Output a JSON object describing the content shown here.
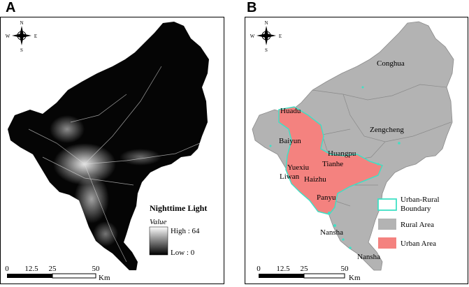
{
  "panels": {
    "a": {
      "letter": "A",
      "compass": {
        "n": "N",
        "s": "S",
        "e": "E",
        "w": "W"
      },
      "legend": {
        "title": "Nighttime Light",
        "value_label": "Value",
        "high_label": "High : 64",
        "low_label": "Low : 0"
      },
      "scale": {
        "ticks": [
          "0",
          "12.5",
          "25",
          "50"
        ],
        "unit": "Km"
      }
    },
    "b": {
      "letter": "B",
      "compass": {
        "n": "N",
        "s": "S",
        "e": "E",
        "w": "W"
      },
      "districts": [
        "Conghua",
        "Huadu",
        "Zengcheng",
        "Baiyun",
        "Huangpu",
        "Tianhe",
        "Yuexiu",
        "Liwan",
        "Haizhu",
        "Panyu",
        "Nansha",
        "Nansha"
      ],
      "legend": {
        "boundary_line1": "Urban-Rural",
        "boundary_line2": "Boundary",
        "rural": "Rural Area",
        "urban": "Urban Area"
      },
      "colors": {
        "rural": "#b3b3b3",
        "urban": "#f4827f",
        "boundary": "#3fe0c5",
        "light_bg": "#050505"
      },
      "scale": {
        "ticks": [
          "0",
          "12.5",
          "25",
          "50"
        ],
        "unit": "Km"
      }
    }
  }
}
